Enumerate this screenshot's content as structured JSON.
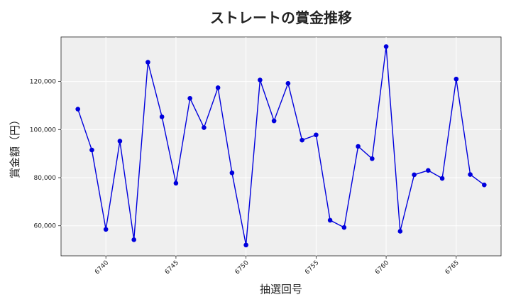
{
  "chart_data": {
    "type": "line",
    "title": "ストレートの賞金推移",
    "xlabel": "抽選回号",
    "ylabel": "賞金額（円）",
    "xlim": [
      6736.8,
      6768.2
    ],
    "ylim": [
      47500,
      138500
    ],
    "x_ticks": [
      6740,
      6745,
      6750,
      6755,
      6760,
      6765
    ],
    "y_ticks": [
      60000,
      80000,
      100000,
      120000
    ],
    "y_tick_labels": [
      "60,000",
      "80,000",
      "100,000",
      "120,000"
    ],
    "grid": true,
    "series_color": "#0000dd",
    "x": [
      6738,
      6739,
      6740,
      6741,
      6742,
      6743,
      6744,
      6745,
      6746,
      6747,
      6748,
      6749,
      6750,
      6751,
      6752,
      6753,
      6754,
      6755,
      6756,
      6757,
      6758,
      6759,
      6760,
      6761,
      6762,
      6763,
      6764,
      6765,
      6766,
      6767
    ],
    "y": [
      108500,
      91500,
      58500,
      95200,
      54200,
      128000,
      105300,
      77700,
      113000,
      100800,
      117400,
      82000,
      52000,
      120600,
      103600,
      119200,
      95600,
      97800,
      62300,
      59300,
      93000,
      87900,
      134500,
      57700,
      81200,
      83000,
      79700,
      121000,
      81300,
      77000
    ]
  }
}
